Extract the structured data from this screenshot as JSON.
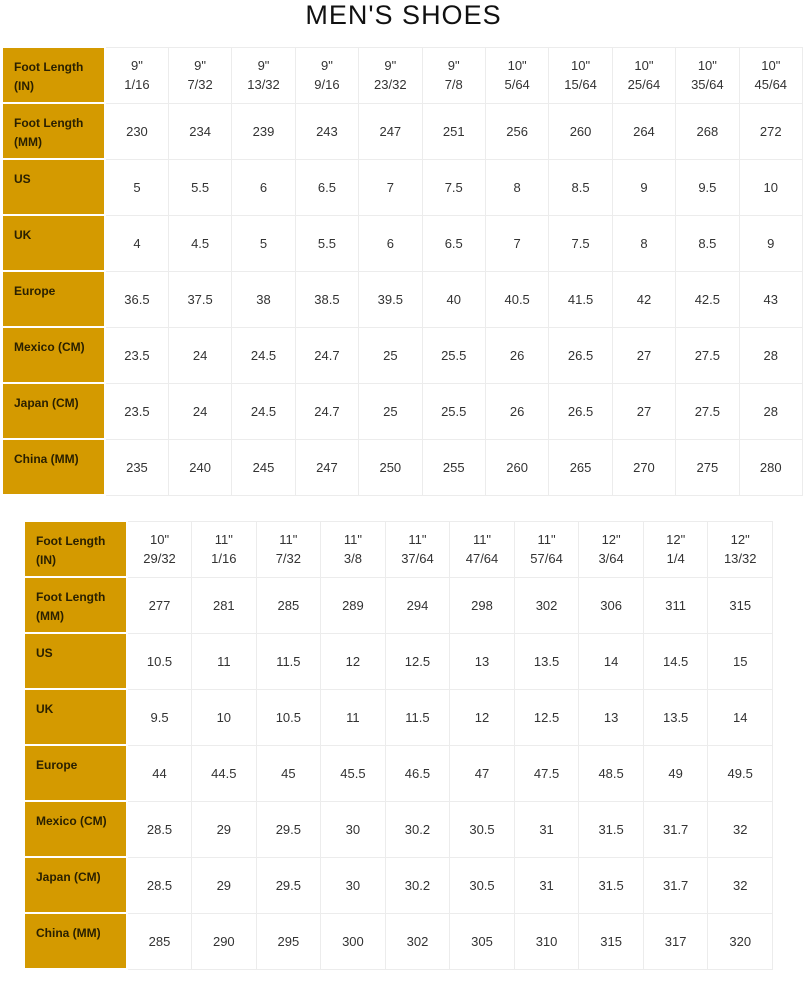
{
  "title": "MEN'S SHOES",
  "tables": [
    {
      "rows": [
        {
          "label": "Foot Length (IN)",
          "values": [
            "9\" 1/16",
            "9\" 7/32",
            "9\" 13/32",
            "9\" 9/16",
            "9\" 23/32",
            "9\" 7/8",
            "10\" 5/64",
            "10\" 15/64",
            "10\" 25/64",
            "10\" 35/64",
            "10\" 45/64"
          ]
        },
        {
          "label": "Foot Length (MM)",
          "values": [
            "230",
            "234",
            "239",
            "243",
            "247",
            "251",
            "256",
            "260",
            "264",
            "268",
            "272"
          ]
        },
        {
          "label": "US",
          "values": [
            "5",
            "5.5",
            "6",
            "6.5",
            "7",
            "7.5",
            "8",
            "8.5",
            "9",
            "9.5",
            "10"
          ]
        },
        {
          "label": "UK",
          "values": [
            "4",
            "4.5",
            "5",
            "5.5",
            "6",
            "6.5",
            "7",
            "7.5",
            "8",
            "8.5",
            "9"
          ]
        },
        {
          "label": "Europe",
          "values": [
            "36.5",
            "37.5",
            "38",
            "38.5",
            "39.5",
            "40",
            "40.5",
            "41.5",
            "42",
            "42.5",
            "43"
          ]
        },
        {
          "label": "Mexico (CM)",
          "values": [
            "23.5",
            "24",
            "24.5",
            "24.7",
            "25",
            "25.5",
            "26",
            "26.5",
            "27",
            "27.5",
            "28"
          ]
        },
        {
          "label": "Japan (CM)",
          "values": [
            "23.5",
            "24",
            "24.5",
            "24.7",
            "25",
            "25.5",
            "26",
            "26.5",
            "27",
            "27.5",
            "28"
          ]
        },
        {
          "label": "China (MM)",
          "values": [
            "235",
            "240",
            "245",
            "247",
            "250",
            "255",
            "260",
            "265",
            "270",
            "275",
            "280"
          ]
        }
      ]
    },
    {
      "rows": [
        {
          "label": "Foot Length (IN)",
          "values": [
            "10\" 29/32",
            "11\" 1/16",
            "11\" 7/32",
            "11\" 3/8",
            "11\" 37/64",
            "11\" 47/64",
            "11\" 57/64",
            "12\" 3/64",
            "12\" 1/4",
            "12\" 13/32"
          ]
        },
        {
          "label": "Foot Length (MM)",
          "values": [
            "277",
            "281",
            "285",
            "289",
            "294",
            "298",
            "302",
            "306",
            "311",
            "315"
          ]
        },
        {
          "label": "US",
          "values": [
            "10.5",
            "11",
            "11.5",
            "12",
            "12.5",
            "13",
            "13.5",
            "14",
            "14.5",
            "15"
          ]
        },
        {
          "label": "UK",
          "values": [
            "9.5",
            "10",
            "10.5",
            "11",
            "11.5",
            "12",
            "12.5",
            "13",
            "13.5",
            "14"
          ]
        },
        {
          "label": "Europe",
          "values": [
            "44",
            "44.5",
            "45",
            "45.5",
            "46.5",
            "47",
            "47.5",
            "48.5",
            "49",
            "49.5"
          ]
        },
        {
          "label": "Mexico (CM)",
          "values": [
            "28.5",
            "29",
            "29.5",
            "30",
            "30.2",
            "30.5",
            "31",
            "31.5",
            "31.7",
            "32"
          ]
        },
        {
          "label": "Japan (CM)",
          "values": [
            "28.5",
            "29",
            "29.5",
            "30",
            "30.2",
            "30.5",
            "31",
            "31.5",
            "31.7",
            "32"
          ]
        },
        {
          "label": "China (MM)",
          "values": [
            "285",
            "290",
            "295",
            "300",
            "302",
            "305",
            "310",
            "315",
            "317",
            "320"
          ]
        }
      ]
    }
  ],
  "colors": {
    "header_bg": "#d49a00",
    "grid": "#ececec"
  }
}
